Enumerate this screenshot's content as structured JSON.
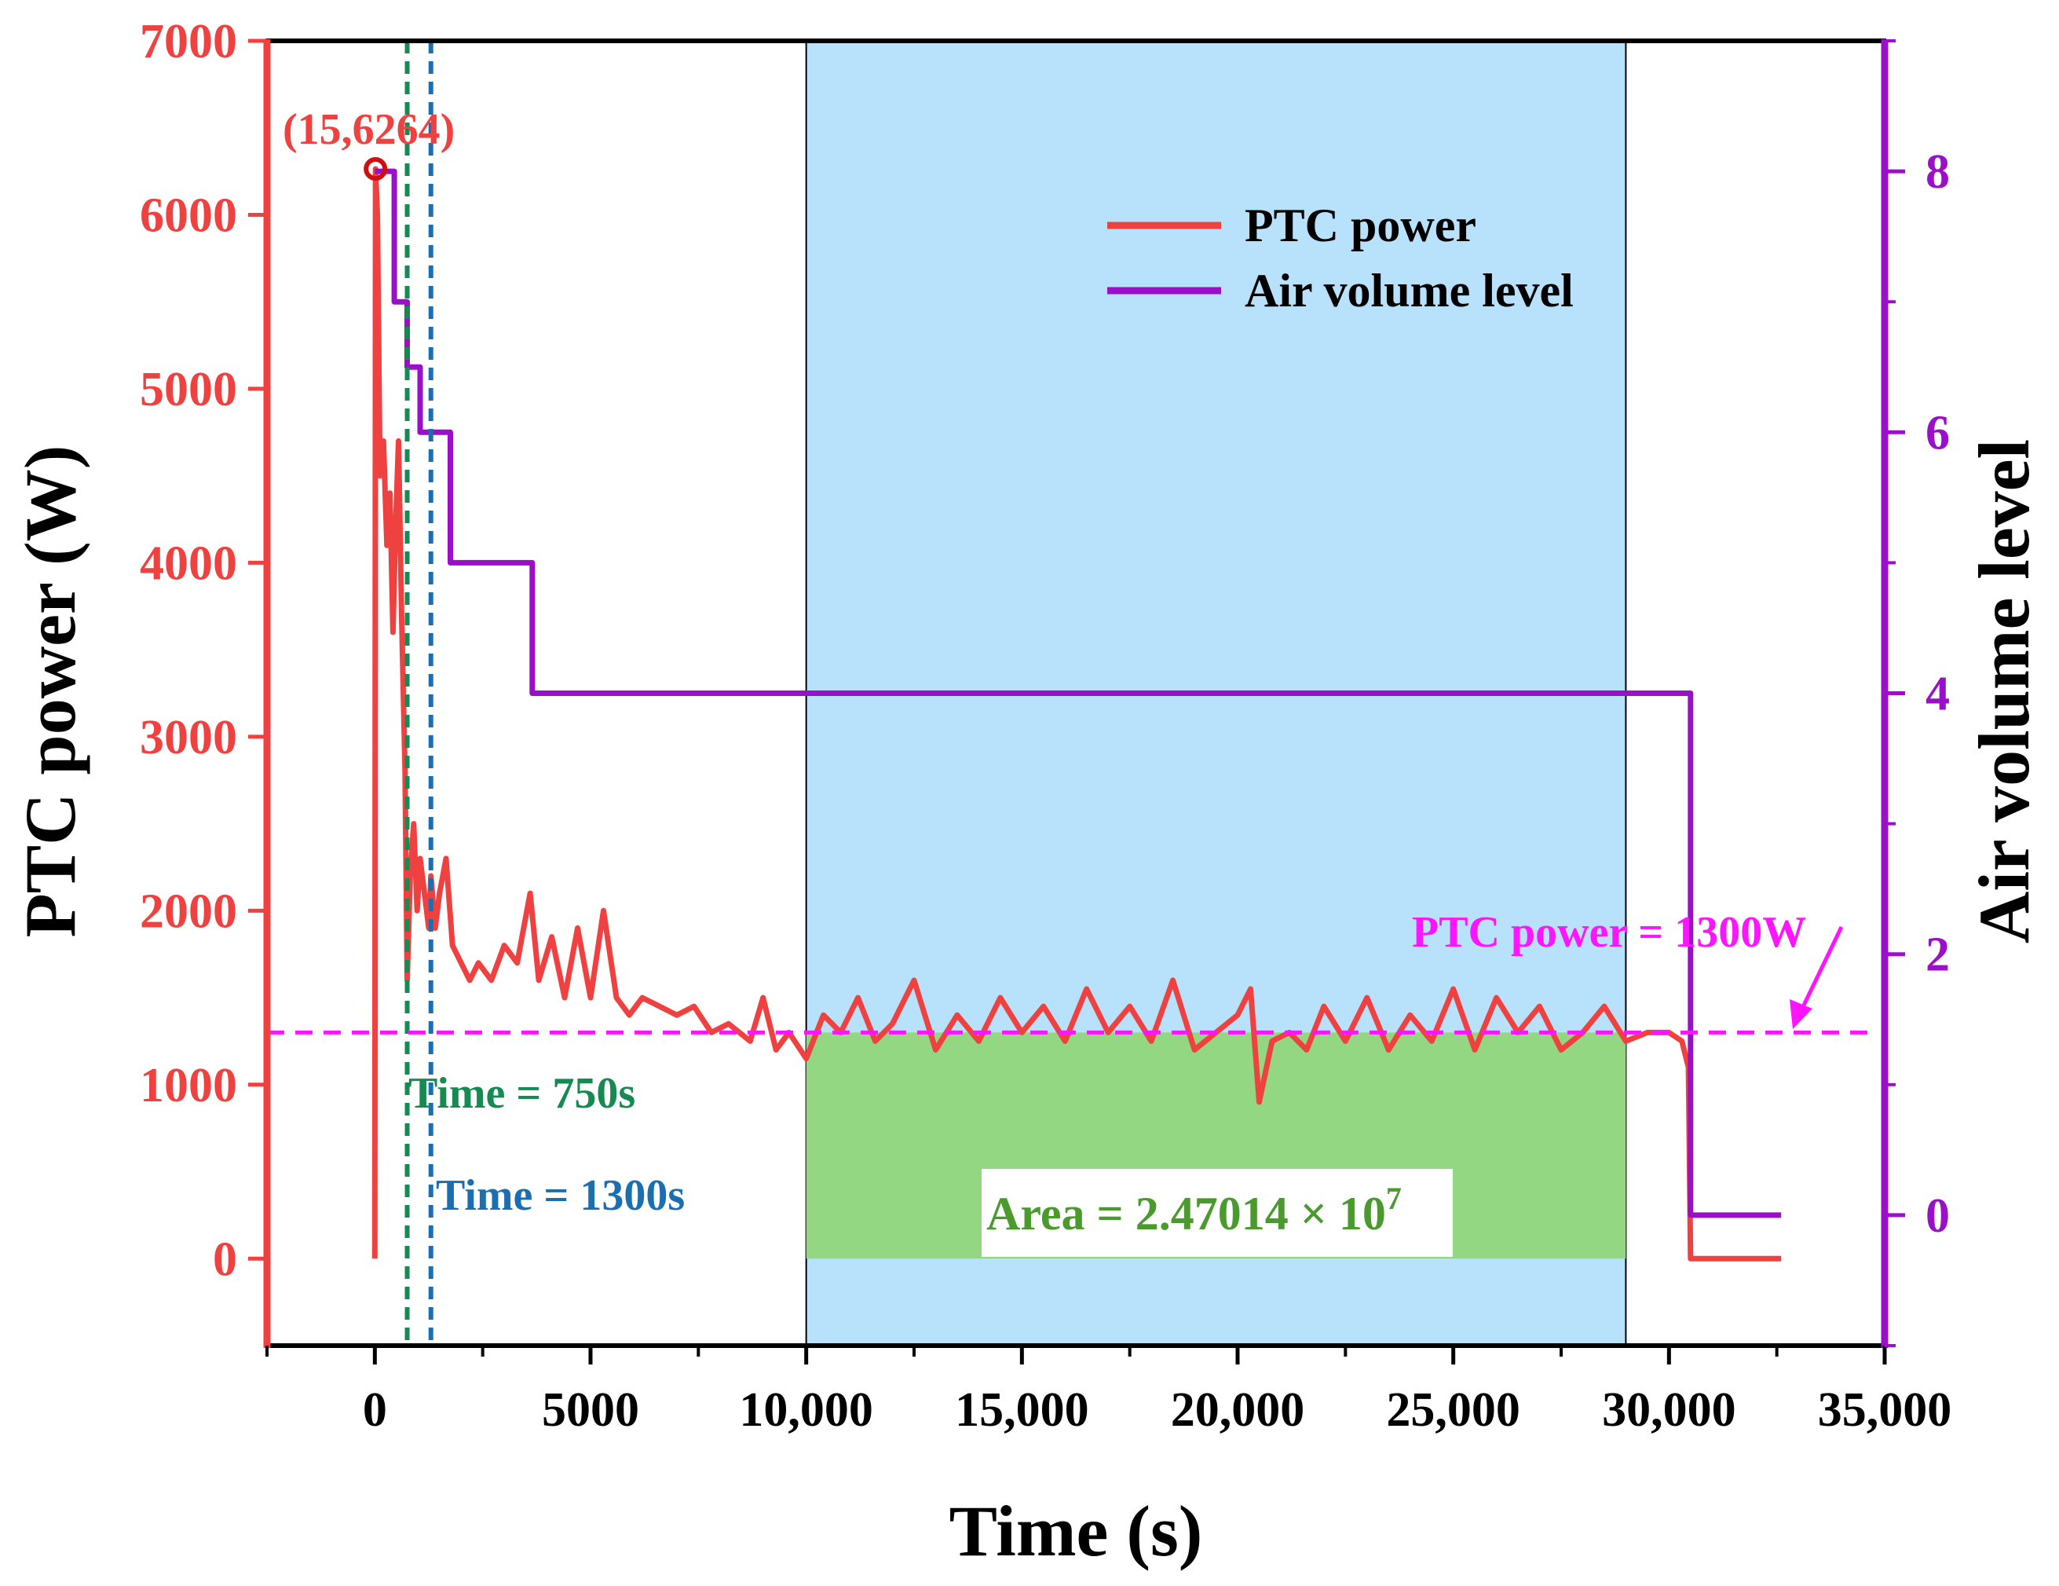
{
  "chart_data": {
    "type": "line",
    "xlabel": "Time (s)",
    "ylabel_left": "PTC power (W)",
    "ylabel_right": "Air volume level",
    "xlim": [
      -2500,
      35000
    ],
    "ylim_left": [
      -500,
      7000
    ],
    "ylim_right": [
      -1,
      9
    ],
    "x_ticks": [
      {
        "value": 0,
        "label": "0"
      },
      {
        "value": 5000,
        "label": "5000"
      },
      {
        "value": 10000,
        "label": "10,000"
      },
      {
        "value": 15000,
        "label": "15,000"
      },
      {
        "value": 20000,
        "label": "20,000"
      },
      {
        "value": 25000,
        "label": "25,000"
      },
      {
        "value": 30000,
        "label": "30,000"
      },
      {
        "value": 35000,
        "label": "35,000"
      }
    ],
    "y_left_ticks": [
      {
        "value": 0,
        "label": "0"
      },
      {
        "value": 1000,
        "label": "1000"
      },
      {
        "value": 2000,
        "label": "2000"
      },
      {
        "value": 3000,
        "label": "3000"
      },
      {
        "value": 4000,
        "label": "4000"
      },
      {
        "value": 5000,
        "label": "5000"
      },
      {
        "value": 6000,
        "label": "6000"
      },
      {
        "value": 7000,
        "label": "7000"
      }
    ],
    "y_right_ticks": [
      {
        "value": 0,
        "label": "0"
      },
      {
        "value": 2,
        "label": "2"
      },
      {
        "value": 4,
        "label": "4"
      },
      {
        "value": 6,
        "label": "6"
      },
      {
        "value": 8,
        "label": "8"
      }
    ],
    "grid": false,
    "legend": {
      "position": "top-center",
      "entries": [
        {
          "name": "PTC power",
          "color": "#f04141"
        },
        {
          "name": "Air volume level",
          "color": "#9a10c8"
        }
      ]
    },
    "series": [
      {
        "name": "PTC power",
        "axis": "left",
        "color": "#f04141",
        "x": [
          0,
          15,
          60,
          120,
          200,
          280,
          350,
          420,
          480,
          550,
          620,
          700,
          750,
          820,
          900,
          980,
          1050,
          1150,
          1250,
          1300,
          1400,
          1500,
          1650,
          1800,
          2000,
          2200,
          2400,
          2700,
          3000,
          3300,
          3600,
          3800,
          4100,
          4400,
          4700,
          5000,
          5300,
          5600,
          5900,
          6200,
          6600,
          7000,
          7400,
          7800,
          8200,
          8700,
          9000,
          9300,
          9600,
          10000,
          10400,
          10800,
          11200,
          11600,
          12000,
          12500,
          13000,
          13500,
          14000,
          14500,
          15000,
          15500,
          16000,
          16500,
          17000,
          17500,
          18000,
          18500,
          19000,
          19500,
          20000,
          20300,
          20500,
          20800,
          21200,
          21600,
          22000,
          22500,
          23000,
          23500,
          24000,
          24500,
          25000,
          25500,
          26000,
          26500,
          27000,
          27500,
          28000,
          28500,
          29000,
          29500,
          30000,
          30300,
          30450,
          30500,
          31000,
          31500,
          32000,
          32600
        ],
        "values": [
          0,
          6264,
          6000,
          4500,
          4700,
          4100,
          4400,
          3600,
          4200,
          4700,
          3700,
          2800,
          1600,
          2200,
          2500,
          2000,
          2300,
          2100,
          1900,
          2200,
          1900,
          2100,
          2300,
          1800,
          1700,
          1600,
          1700,
          1600,
          1800,
          1700,
          2100,
          1600,
          1850,
          1500,
          1900,
          1500,
          2000,
          1500,
          1400,
          1500,
          1450,
          1400,
          1450,
          1300,
          1350,
          1250,
          1500,
          1200,
          1300,
          1150,
          1400,
          1300,
          1500,
          1250,
          1350,
          1600,
          1200,
          1400,
          1250,
          1500,
          1300,
          1450,
          1250,
          1550,
          1300,
          1450,
          1250,
          1600,
          1200,
          1300,
          1400,
          1550,
          900,
          1250,
          1300,
          1200,
          1450,
          1250,
          1500,
          1200,
          1400,
          1250,
          1550,
          1200,
          1500,
          1300,
          1450,
          1200,
          1300,
          1450,
          1250,
          1300,
          1300,
          1250,
          1100,
          0,
          0,
          0,
          0,
          0
        ]
      },
      {
        "name": "Air volume level",
        "axis": "right",
        "color": "#9a10c8",
        "x": [
          0,
          450,
          450,
          750,
          750,
          1050,
          1050,
          1300,
          1300,
          1750,
          1750,
          3650,
          3650,
          30500,
          30500,
          32600
        ],
        "values": [
          8,
          8,
          7,
          7,
          6.5,
          6.5,
          6,
          6,
          6,
          6,
          5,
          5,
          4,
          4,
          0,
          0
        ]
      }
    ],
    "annotations": {
      "peak_label": "(15,6264)",
      "peak_point": {
        "x": 15,
        "y": 6264
      },
      "time_750_label": "Time = 750s",
      "time_750_x": 750,
      "time_1300_label": "Time = 1300s",
      "time_1300_x": 1300,
      "threshold_label": "PTC power = 1300W",
      "threshold_value": 1300,
      "area_label_prefix": "Area = 2.47014 × 10",
      "area_label_exponent": "7",
      "shaded_region": [
        10000,
        29000
      ],
      "integral_region_y_max": 1300
    },
    "colors": {
      "left_axis": "#f04141",
      "right_axis": "#9a10c8",
      "shade": "#b8e2fb",
      "area_fill": "#93d783",
      "area_text": "#4a9a2e",
      "time_750": "#178a52",
      "time_1300": "#1b6fb0",
      "threshold": "#ff14ff"
    }
  }
}
